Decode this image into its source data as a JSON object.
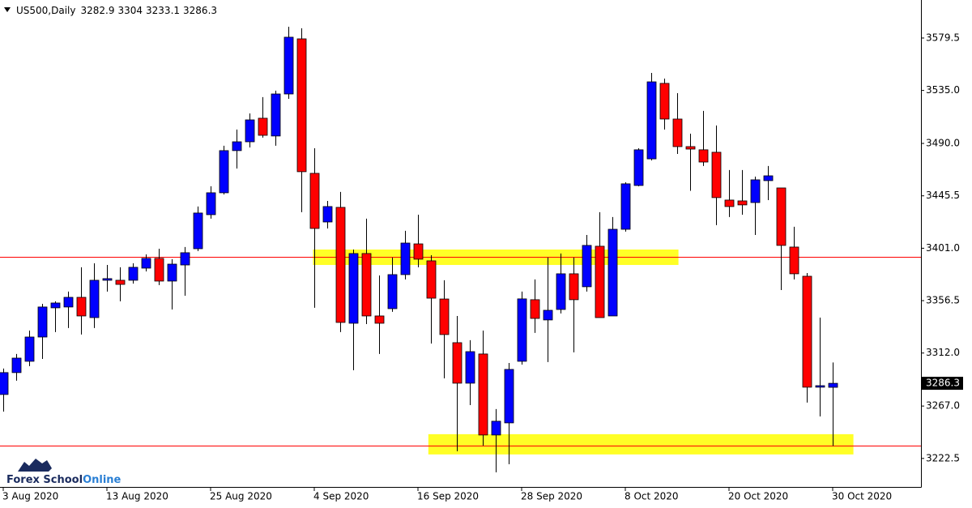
{
  "chart_data": {
    "type": "candlestick",
    "title": "US500,Daily",
    "categories": [
      "3 Aug 2020",
      null,
      null,
      null,
      null,
      null,
      null,
      null,
      "13 Aug 2020",
      null,
      null,
      null,
      null,
      null,
      null,
      null,
      "25 Aug 2020",
      null,
      null,
      null,
      null,
      null,
      null,
      null,
      "4 Sep 2020",
      null,
      null,
      null,
      null,
      null,
      null,
      null,
      "16 Sep 2020",
      null,
      null,
      null,
      null,
      null,
      null,
      null,
      "28 Sep 2020",
      null,
      null,
      null,
      null,
      null,
      null,
      null,
      "8 Oct 2020",
      null,
      null,
      null,
      null,
      null,
      null,
      null,
      "20 Oct 2020",
      null,
      null,
      null,
      null,
      null,
      null,
      null,
      "30 Oct 2020"
    ],
    "open": [
      3276.8,
      3295.4,
      3305.0,
      3325.6,
      3350.4,
      3351.1,
      3359.3,
      3342.1,
      3373.8,
      3373.8,
      3373.8,
      3384.1,
      3392.4,
      3373.1,
      3386.8,
      3400.6,
      3429.5,
      3448.1,
      3483.9,
      3491.4,
      3511.4,
      3496.3,
      3532.0,
      3578.8,
      3464.6,
      3423.3,
      3435.7,
      3337.3,
      3396.5,
      3343.5,
      3349.7,
      3378.6,
      3404.7,
      3390.3,
      3357.9,
      3320.8,
      3286.4,
      3311.2,
      3242.4,
      3252.7,
      3305.0,
      3357.3,
      3340.1,
      3349.0,
      3379.3,
      3368.3,
      3402.7,
      3343.5,
      3417.1,
      3454.3,
      3476.9,
      3541.0,
      3510.7,
      3487.3,
      3484.6,
      3482.5,
      3441.9,
      3441.2,
      3439.8,
      3458.4,
      3452.2,
      3402.0,
      3377.2,
      3283.0,
      3282.9
    ],
    "high": [
      3298.8,
      3311.2,
      3331.1,
      3353.8,
      3355.9,
      3364.2,
      3384.8,
      3388.2,
      3386.8,
      3384.8,
      3388.2,
      3395.8,
      3400.6,
      3391.7,
      3402.0,
      3436.4,
      3453.6,
      3488.0,
      3501.8,
      3515.5,
      3529.3,
      3534.8,
      3589.1,
      3587.8,
      3485.9,
      3441.2,
      3448.8,
      3399.9,
      3426.1,
      3377.9,
      3393.1,
      3415.8,
      3429.5,
      3395.1,
      3373.8,
      3343.5,
      3322.9,
      3331.1,
      3264.4,
      3303.6,
      3364.2,
      3374.5,
      3393.1,
      3396.5,
      3393.1,
      3412.3,
      3431.6,
      3427.5,
      3457.0,
      3485.9,
      3549.9,
      3545.1,
      3532.7,
      3498.3,
      3517.6,
      3505.2,
      3467.4,
      3467.4,
      3461.8,
      3470.8,
      3452.2,
      3419.2,
      3379.9,
      3342.1,
      3304.0
    ],
    "low": [
      3262.3,
      3288.5,
      3300.9,
      3307.0,
      3329.8,
      3333.2,
      3327.7,
      3333.2,
      3364.2,
      3355.9,
      3371.0,
      3381.3,
      3369.7,
      3349.0,
      3360.7,
      3398.6,
      3426.1,
      3446.7,
      3468.7,
      3486.6,
      3494.9,
      3488.0,
      3527.9,
      3431.6,
      3350.4,
      3417.8,
      3329.8,
      3297.4,
      3336.6,
      3311.2,
      3347.0,
      3374.5,
      3384.8,
      3320.1,
      3290.5,
      3228.6,
      3267.8,
      3233.4,
      3210.7,
      3217.6,
      3302.2,
      3329.1,
      3304.3,
      3345.6,
      3312.6,
      3364.2,
      3342.1,
      3343.5,
      3415.1,
      3453.6,
      3475.6,
      3501.8,
      3481.1,
      3449.8,
      3470.8,
      3420.6,
      3427.5,
      3429.5,
      3412.3,
      3441.9,
      3365.5,
      3374.5,
      3269.9,
      3258.2,
      3233.1
    ],
    "close": [
      3295.4,
      3307.7,
      3325.6,
      3351.1,
      3354.5,
      3359.3,
      3343.5,
      3373.8,
      3375.2,
      3370.3,
      3384.8,
      3392.4,
      3373.1,
      3387.5,
      3397.2,
      3430.9,
      3448.1,
      3483.9,
      3491.4,
      3510.0,
      3496.9,
      3532.0,
      3580.2,
      3466.0,
      3417.8,
      3436.4,
      3338.0,
      3396.5,
      3343.5,
      3337.3,
      3378.6,
      3405.4,
      3391.7,
      3358.6,
      3327.7,
      3286.4,
      3313.2,
      3242.4,
      3254.1,
      3298.1,
      3358.0,
      3341.4,
      3348.3,
      3379.3,
      3357.3,
      3403.4,
      3342.1,
      3417.1,
      3455.7,
      3484.6,
      3542.3,
      3510.7,
      3487.3,
      3485.2,
      3474.2,
      3444.0,
      3436.4,
      3437.8,
      3459.1,
      3462.5,
      3403.4,
      3379.3,
      3283.0,
      3284.3,
      3286.3
    ],
    "up_color": "#0000ff",
    "down_color": "#ff0000",
    "ylim": [
      3198.3,
      3611.8
    ],
    "yticks": [
      3222.5,
      {
        "value": 3267,
        "label": "3267.0"
      },
      {
        "value": 3312,
        "label": "3312.0"
      },
      3356.5,
      {
        "value": 3401,
        "label": "3401.0"
      },
      3445.5,
      {
        "value": 3490,
        "label": "3490.0"
      },
      {
        "value": 3535,
        "label": "3535.0"
      },
      3579.5
    ],
    "hlines": [
      {
        "value": 3393.5,
        "color": "#ff0000"
      },
      {
        "value": 3233.4,
        "color": "#ff0000"
      }
    ],
    "zones": [
      {
        "from": 3386.8,
        "to": 3399.9,
        "x": [
          23.9,
          52.1
        ],
        "color": "#ffff00"
      },
      {
        "from": 3225.9,
        "to": 3243.1,
        "x": [
          32.8,
          65.6
        ],
        "color": "#ffff00"
      }
    ]
  },
  "logo": {
    "part1": "Forex School",
    "part2": "Online"
  }
}
